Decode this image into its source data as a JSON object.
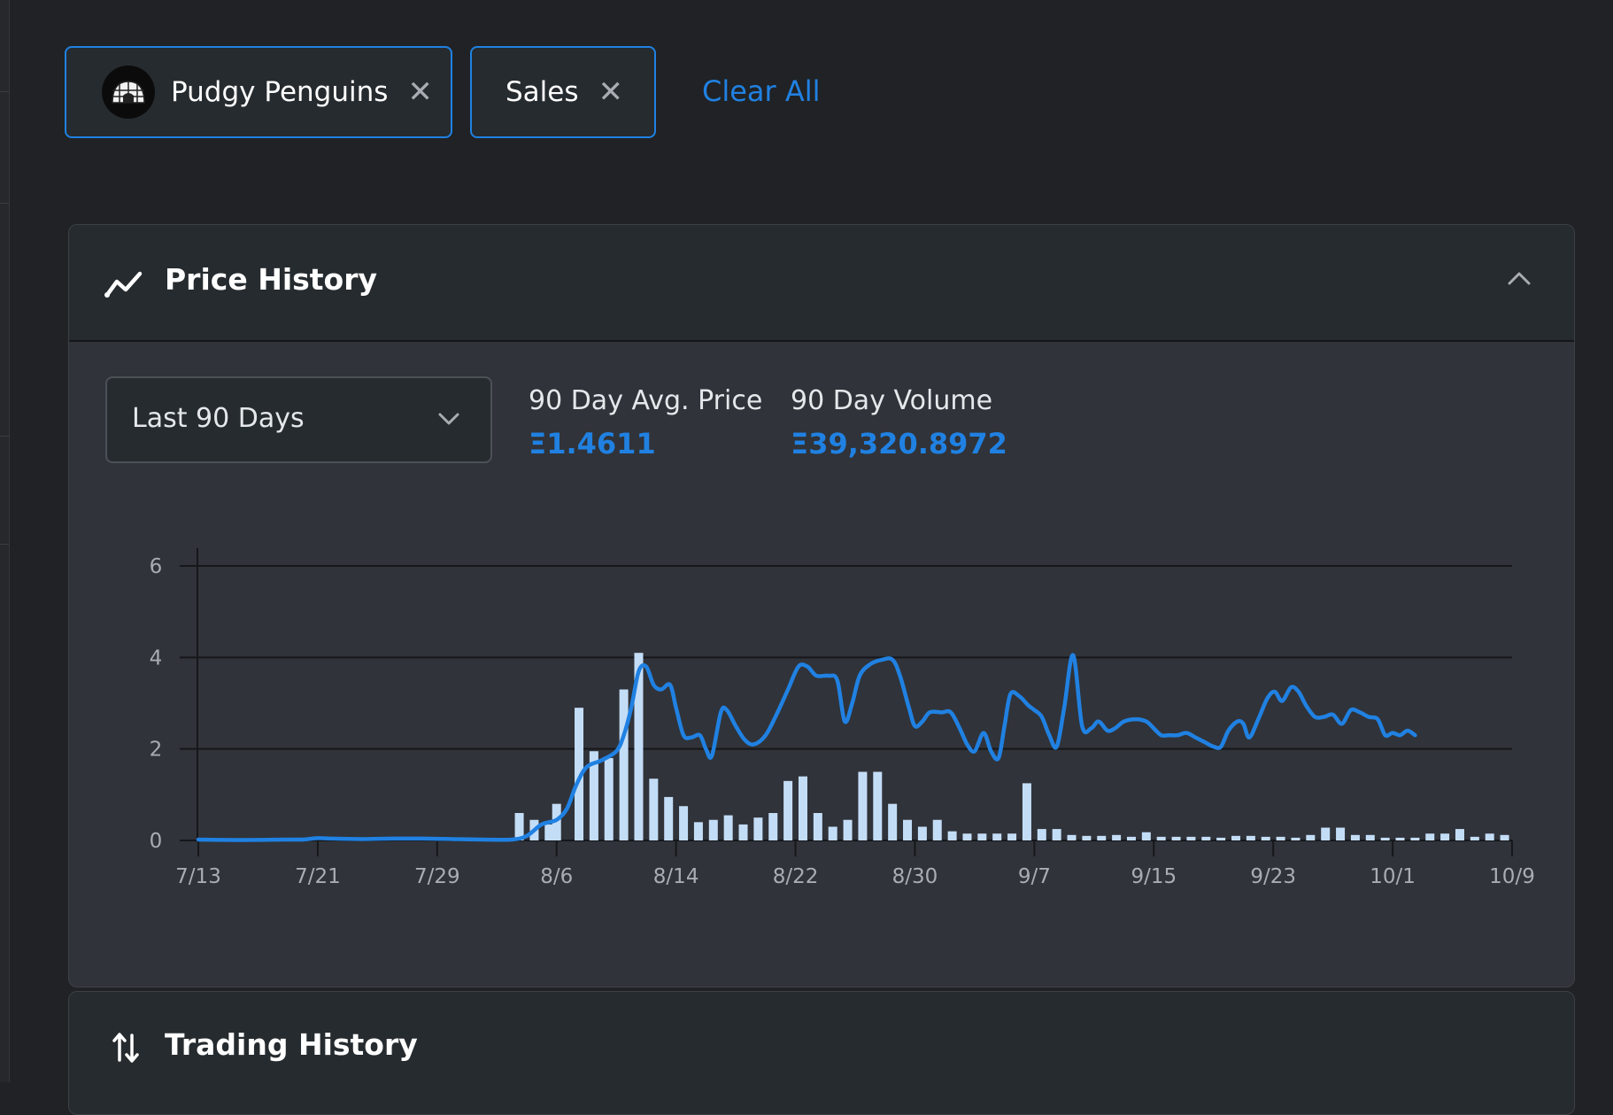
{
  "filters": {
    "collection_label": "Pudgy Penguins",
    "type_label": "Sales",
    "clear_all": "Clear All",
    "remove_glyph": "✕"
  },
  "price_history": {
    "title": "Price History",
    "range_select": {
      "selected": "Last 90 Days"
    },
    "stats": [
      {
        "label": "90 Day Avg. Price",
        "value": "Ξ1.4611"
      },
      {
        "label": "90 Day Volume",
        "value": "Ξ39,320.8972"
      }
    ]
  },
  "trading_history": {
    "title": "Trading History"
  },
  "colors": {
    "accent": "#2081e2",
    "bar": "#c4ddf7",
    "background": "#202225",
    "panel": "#303339"
  },
  "chart_data": {
    "type": "bar",
    "title": "",
    "xlabel": "",
    "ylabel": "",
    "ylim": [
      0,
      6
    ],
    "xlim_days": [
      0,
      88
    ],
    "y_ticks": [
      "0",
      "2",
      "4",
      "6"
    ],
    "x_ticks": [
      {
        "day": 0,
        "label": "7/13"
      },
      {
        "day": 8,
        "label": "7/21"
      },
      {
        "day": 16,
        "label": "7/29"
      },
      {
        "day": 24,
        "label": "8/6"
      },
      {
        "day": 32,
        "label": "8/14"
      },
      {
        "day": 40,
        "label": "8/22"
      },
      {
        "day": 48,
        "label": "8/30"
      },
      {
        "day": 56,
        "label": "9/7"
      },
      {
        "day": 64,
        "label": "9/15"
      },
      {
        "day": 72,
        "label": "9/23"
      },
      {
        "day": 80,
        "label": "10/1"
      },
      {
        "day": 88,
        "label": "10/9"
      }
    ],
    "series": [
      {
        "name": "Sales volume",
        "kind": "bar",
        "points": [
          [
            21.5,
            0.6
          ],
          [
            22.5,
            0.45
          ],
          [
            23.5,
            0.35
          ],
          [
            24.0,
            0.8
          ],
          [
            25.5,
            2.9
          ],
          [
            26.5,
            1.95
          ],
          [
            27.5,
            1.8
          ],
          [
            28.5,
            3.3
          ],
          [
            29.5,
            4.1
          ],
          [
            30.5,
            1.35
          ],
          [
            31.5,
            0.95
          ],
          [
            32.5,
            0.75
          ],
          [
            33.5,
            0.4
          ],
          [
            34.5,
            0.45
          ],
          [
            35.5,
            0.55
          ],
          [
            36.5,
            0.35
          ],
          [
            37.5,
            0.5
          ],
          [
            38.5,
            0.6
          ],
          [
            39.5,
            1.3
          ],
          [
            40.5,
            1.4
          ],
          [
            41.5,
            0.6
          ],
          [
            42.5,
            0.3
          ],
          [
            43.5,
            0.45
          ],
          [
            44.5,
            1.5
          ],
          [
            45.5,
            1.5
          ],
          [
            46.5,
            0.8
          ],
          [
            47.5,
            0.45
          ],
          [
            48.5,
            0.3
          ],
          [
            49.5,
            0.45
          ],
          [
            50.5,
            0.2
          ],
          [
            51.5,
            0.15
          ],
          [
            52.5,
            0.15
          ],
          [
            53.5,
            0.15
          ],
          [
            54.5,
            0.15
          ],
          [
            55.5,
            1.25
          ],
          [
            56.5,
            0.25
          ],
          [
            57.5,
            0.25
          ],
          [
            58.5,
            0.12
          ],
          [
            59.5,
            0.1
          ],
          [
            60.5,
            0.1
          ],
          [
            61.5,
            0.12
          ],
          [
            62.5,
            0.08
          ],
          [
            63.5,
            0.18
          ],
          [
            64.5,
            0.08
          ],
          [
            65.5,
            0.08
          ],
          [
            66.5,
            0.08
          ],
          [
            67.5,
            0.08
          ],
          [
            68.5,
            0.06
          ],
          [
            69.5,
            0.1
          ],
          [
            70.5,
            0.1
          ],
          [
            71.5,
            0.08
          ],
          [
            72.5,
            0.08
          ],
          [
            73.5,
            0.06
          ],
          [
            74.5,
            0.12
          ],
          [
            75.5,
            0.28
          ],
          [
            76.5,
            0.28
          ],
          [
            77.5,
            0.12
          ],
          [
            78.5,
            0.12
          ],
          [
            79.5,
            0.06
          ],
          [
            80.5,
            0.06
          ],
          [
            81.5,
            0.06
          ],
          [
            82.5,
            0.15
          ],
          [
            83.5,
            0.15
          ],
          [
            84.5,
            0.25
          ],
          [
            85.5,
            0.08
          ],
          [
            86.5,
            0.15
          ],
          [
            87.5,
            0.12
          ]
        ]
      },
      {
        "name": "Average price",
        "kind": "line",
        "points": [
          [
            0,
            0.02
          ],
          [
            3,
            0.01
          ],
          [
            6,
            0.02
          ],
          [
            7,
            0.02
          ],
          [
            8,
            0.05
          ],
          [
            9,
            0.04
          ],
          [
            11,
            0.03
          ],
          [
            13,
            0.04
          ],
          [
            15,
            0.04
          ],
          [
            17,
            0.03
          ],
          [
            19,
            0.02
          ],
          [
            21,
            0.02
          ],
          [
            22,
            0.1
          ],
          [
            23,
            0.35
          ],
          [
            24,
            0.45
          ],
          [
            24.7,
            0.7
          ],
          [
            25.3,
            1.2
          ],
          [
            26,
            1.6
          ],
          [
            27,
            1.75
          ],
          [
            28,
            1.95
          ],
          [
            28.5,
            2.3
          ],
          [
            29,
            2.9
          ],
          [
            29.5,
            3.7
          ],
          [
            30,
            3.8
          ],
          [
            30.5,
            3.4
          ],
          [
            31,
            3.3
          ],
          [
            31.6,
            3.4
          ],
          [
            32,
            2.9
          ],
          [
            32.5,
            2.3
          ],
          [
            33,
            2.25
          ],
          [
            33.6,
            2.3
          ],
          [
            34,
            2.0
          ],
          [
            34.4,
            1.85
          ],
          [
            35,
            2.8
          ],
          [
            35.4,
            2.85
          ],
          [
            36,
            2.5
          ],
          [
            36.6,
            2.2
          ],
          [
            37.2,
            2.1
          ],
          [
            38,
            2.3
          ],
          [
            38.8,
            2.8
          ],
          [
            39.5,
            3.3
          ],
          [
            40.2,
            3.8
          ],
          [
            40.8,
            3.8
          ],
          [
            41.4,
            3.6
          ],
          [
            42.2,
            3.6
          ],
          [
            42.8,
            3.5
          ],
          [
            43.3,
            2.6
          ],
          [
            43.8,
            3.0
          ],
          [
            44.3,
            3.6
          ],
          [
            45,
            3.85
          ],
          [
            45.8,
            3.95
          ],
          [
            46.5,
            3.95
          ],
          [
            47,
            3.6
          ],
          [
            47.6,
            2.9
          ],
          [
            48,
            2.5
          ],
          [
            48.5,
            2.6
          ],
          [
            49,
            2.8
          ],
          [
            49.8,
            2.8
          ],
          [
            50.4,
            2.8
          ],
          [
            51,
            2.45
          ],
          [
            51.5,
            2.1
          ],
          [
            52,
            1.95
          ],
          [
            52.6,
            2.35
          ],
          [
            53.1,
            1.95
          ],
          [
            53.6,
            1.8
          ],
          [
            54,
            2.5
          ],
          [
            54.4,
            3.2
          ],
          [
            55,
            3.15
          ],
          [
            55.6,
            2.95
          ],
          [
            56,
            2.85
          ],
          [
            56.5,
            2.7
          ],
          [
            57,
            2.3
          ],
          [
            57.5,
            2.05
          ],
          [
            58,
            2.9
          ],
          [
            58.6,
            4.05
          ],
          [
            59.2,
            2.5
          ],
          [
            59.8,
            2.45
          ],
          [
            60.3,
            2.6
          ],
          [
            60.9,
            2.4
          ],
          [
            61.4,
            2.45
          ],
          [
            62,
            2.6
          ],
          [
            62.8,
            2.65
          ],
          [
            63.5,
            2.6
          ],
          [
            64,
            2.45
          ],
          [
            64.5,
            2.3
          ],
          [
            65,
            2.3
          ],
          [
            65.6,
            2.3
          ],
          [
            66.2,
            2.35
          ],
          [
            66.8,
            2.25
          ],
          [
            67.4,
            2.15
          ],
          [
            68,
            2.05
          ],
          [
            68.5,
            2.05
          ],
          [
            69,
            2.4
          ],
          [
            69.6,
            2.6
          ],
          [
            70,
            2.55
          ],
          [
            70.4,
            2.25
          ],
          [
            71,
            2.65
          ],
          [
            71.6,
            3.1
          ],
          [
            72.1,
            3.25
          ],
          [
            72.6,
            3.05
          ],
          [
            73.2,
            3.35
          ],
          [
            73.7,
            3.25
          ],
          [
            74.2,
            2.95
          ],
          [
            74.8,
            2.7
          ],
          [
            75.4,
            2.7
          ],
          [
            76,
            2.75
          ],
          [
            76.6,
            2.55
          ],
          [
            77.2,
            2.85
          ],
          [
            77.8,
            2.8
          ],
          [
            78.4,
            2.7
          ],
          [
            79,
            2.65
          ],
          [
            79.5,
            2.3
          ],
          [
            80,
            2.35
          ],
          [
            80.5,
            2.3
          ],
          [
            81,
            2.4
          ],
          [
            81.5,
            2.3
          ]
        ]
      }
    ]
  }
}
